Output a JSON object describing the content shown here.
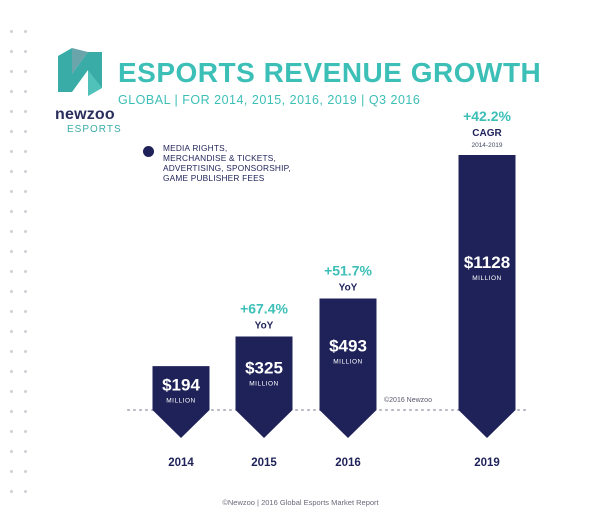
{
  "brand": {
    "name": "newzoo",
    "sub": "ESPORTS"
  },
  "header": {
    "title": "ESPORTS REVENUE GROWTH",
    "subtitle": "GLOBAL | FOR 2014, 2015, 2016, 2019 | Q3 2016"
  },
  "legend": {
    "text": "MEDIA RIGHTS, MERCHANDISE & TICKETS, ADVERTISING, SPONSORSHIP, GAME PUBLISHER FEES"
  },
  "watermark": "©2016 Newzoo",
  "footer": "©Newzoo | 2016 Global Esports Market Report",
  "colors": {
    "bar": "#1f2259",
    "accent": "#3cbfb7",
    "dark_text": "#1f2259"
  },
  "chart_data": {
    "type": "bar",
    "title": "ESPORTS REVENUE GROWTH",
    "subtitle": "GLOBAL | FOR 2014, 2015, 2016, 2019 | Q3 2016",
    "categories": [
      "2014",
      "2015",
      "2016",
      "2019"
    ],
    "values": [
      194,
      325,
      493,
      1128
    ],
    "value_labels": [
      "$194",
      "$325",
      "$493",
      "$1128"
    ],
    "unit_label": "MILLION",
    "growth": [
      {
        "category": "2014",
        "value": "",
        "label": ""
      },
      {
        "category": "2015",
        "value": "+67.4%",
        "label": "YoY",
        "note": ""
      },
      {
        "category": "2016",
        "value": "+51.7%",
        "label": "YoY",
        "note": ""
      },
      {
        "category": "2019",
        "value": "+42.2%",
        "label": "CAGR",
        "note": "2014-2019"
      }
    ],
    "legend": [
      "MEDIA RIGHTS, MERCHANDISE & TICKETS, ADVERTISING, SPONSORSHIP, GAME PUBLISHER FEES"
    ],
    "grid": false
  }
}
